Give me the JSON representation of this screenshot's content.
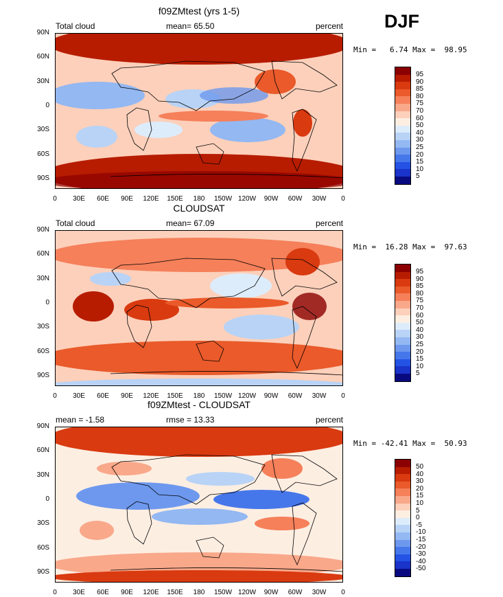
{
  "season": "DJF",
  "panels": [
    {
      "title": "f09ZMtest (yrs 1-5)",
      "left": "Total cloud",
      "mid": "mean=  65.50",
      "right": "percent",
      "minmax": "Min =   6.74 Max =  98.95"
    },
    {
      "title": "CLOUDSAT",
      "left": "Total cloud",
      "mid": "mean=  67.09",
      "right": "percent",
      "minmax": "Min =  16.28 Max =  97.63"
    },
    {
      "title": "f09ZMtest - CLOUDSAT",
      "left": "mean =  -1.58",
      "mid": "rmse =  13.33",
      "right": "percent",
      "minmax": "Min = -42.41 Max =  50.93"
    }
  ],
  "lat_labels": [
    "90N",
    "60N",
    "30N",
    "0",
    "30S",
    "60S",
    "90S"
  ],
  "lon_labels": [
    "0",
    "30E",
    "60E",
    "90E",
    "120E",
    "150E",
    "180",
    "150W",
    "120W",
    "90W",
    "60W",
    "30W",
    "0"
  ],
  "cbar_abs": {
    "levels": [
      "95",
      "90",
      "85",
      "80",
      "75",
      "70",
      "60",
      "50",
      "40",
      "30",
      "25",
      "20",
      "15",
      "10",
      "5"
    ],
    "colors": [
      "#8b0000",
      "#b71c00",
      "#d93a10",
      "#ea5a2a",
      "#f5805a",
      "#f9a88a",
      "#fcd0bb",
      "#fdeee2",
      "#ddecfb",
      "#b8d3f6",
      "#93b8f2",
      "#6d98ee",
      "#4677ea",
      "#2352e4",
      "#1a33c8",
      "#0a0a80"
    ]
  },
  "cbar_diff": {
    "levels": [
      "50",
      "40",
      "30",
      "20",
      "15",
      "10",
      "5",
      "0",
      "-5",
      "-10",
      "-15",
      "-20",
      "-30",
      "-40",
      "-50"
    ],
    "colors": [
      "#8b0000",
      "#b71c00",
      "#d93a10",
      "#ea5a2a",
      "#f5805a",
      "#f9a88a",
      "#fcd0bb",
      "#fdeee2",
      "#ddecfb",
      "#b8d3f6",
      "#93b8f2",
      "#6d98ee",
      "#4677ea",
      "#2352e4",
      "#1a33c8",
      "#0a0a80"
    ]
  }
}
